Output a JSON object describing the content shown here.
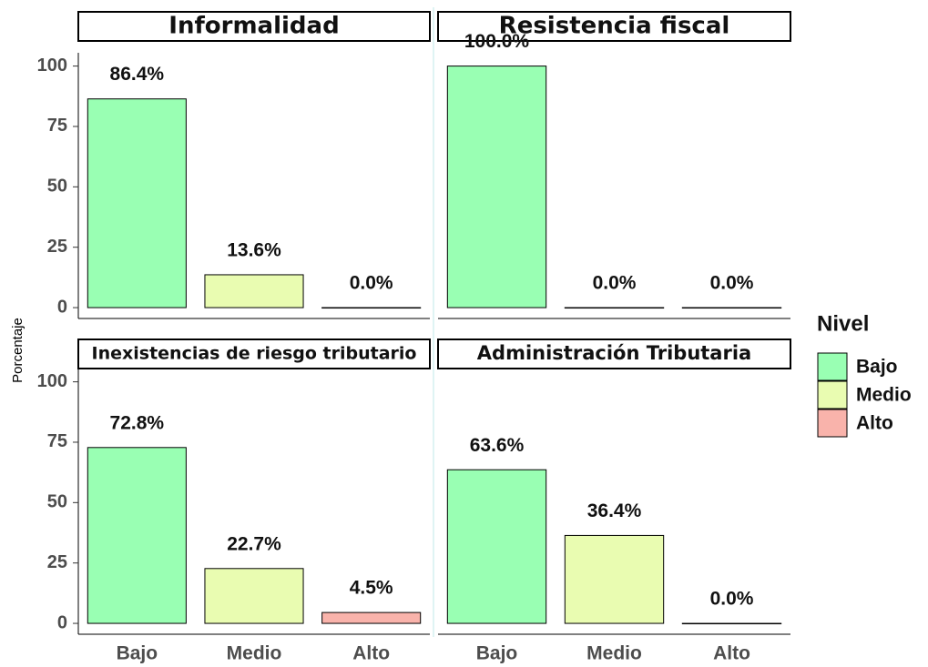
{
  "y_label": "Porcentaje",
  "legend_title": "Nivel",
  "categories": [
    "Bajo",
    "Medio",
    "Alto"
  ],
  "colors": [
    "#99ffb3",
    "#e9fcb1",
    "#f9b3ab"
  ],
  "ylim": [
    -4.5,
    105.5
  ],
  "yticks": [
    0,
    25,
    50,
    75,
    100
  ],
  "chart_data": [
    {
      "type": "bar",
      "title": "Informalidad",
      "values": [
        86.4,
        13.6,
        0.0
      ],
      "value_labels": [
        "86.4%",
        "13.6%",
        "0.0%"
      ]
    },
    {
      "type": "bar",
      "title": "Resistencia fiscal",
      "values": [
        100.0,
        0.0,
        0.0
      ],
      "value_labels": [
        "100.0%",
        "0.0%",
        "0.0%"
      ]
    },
    {
      "type": "bar",
      "title": "Inexistencias de riesgo tributario",
      "values": [
        72.8,
        22.7,
        4.5
      ],
      "value_labels": [
        "72.8%",
        "22.7%",
        "4.5%"
      ]
    },
    {
      "type": "bar",
      "title": "Administración Tributaria",
      "values": [
        63.6,
        36.4,
        0.0
      ],
      "value_labels": [
        "63.6%",
        "36.4%",
        "0.0%"
      ]
    }
  ]
}
